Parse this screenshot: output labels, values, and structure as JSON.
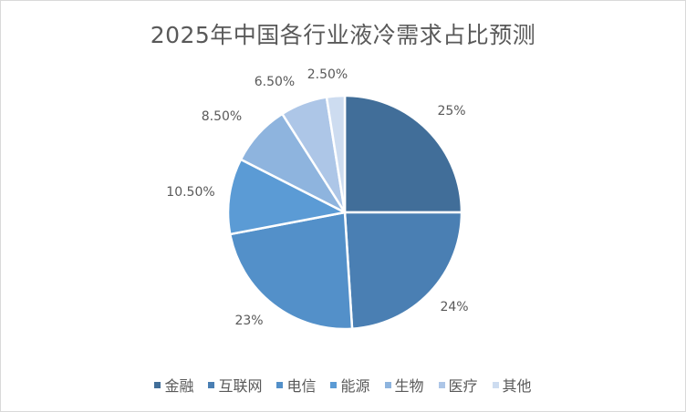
{
  "chart_data": {
    "type": "pie",
    "title": "2025年中国各行业液冷需求占比预测",
    "categories": [
      "金融",
      "互联网",
      "电信",
      "能源",
      "生物",
      "医疗",
      "其他"
    ],
    "values": [
      25,
      24,
      23,
      10.5,
      8.5,
      6.5,
      2.5
    ],
    "data_labels": [
      "25%",
      "24%",
      "23%",
      "10.50%",
      "8.50%",
      "6.50%",
      "2.50%"
    ],
    "colors": [
      "#416e99",
      "#4a7fb3",
      "#5390c9",
      "#5b9bd5",
      "#8eb4de",
      "#adc6e7",
      "#cddcf0"
    ],
    "legend_position": "bottom",
    "start_angle": "12 o'clock",
    "direction": "clockwise"
  }
}
